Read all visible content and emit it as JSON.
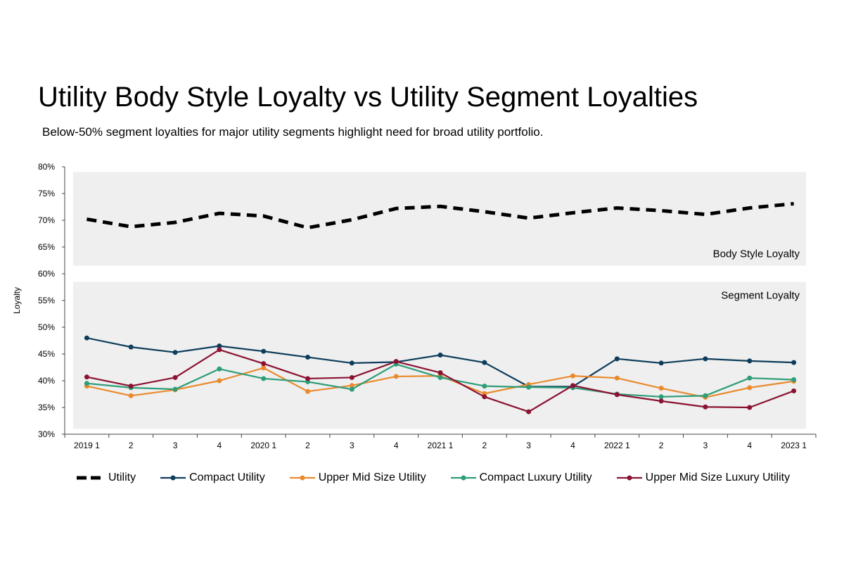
{
  "title": "Utility Body Style Loyalty vs Utility Segment Loyalties",
  "subtitle": "Below-50% segment loyalties for major utility segments highlight need for broad utility portfolio.",
  "chart_data": {
    "type": "line",
    "title": "Utility Body Style Loyalty vs Utility Segment Loyalties",
    "subtitle": "Below-50% segment loyalties for major utility segments highlight need for broad utility portfolio.",
    "ylabel": "Loyalty",
    "xlabel": "",
    "ylim": [
      30,
      80
    ],
    "yticks": [
      "30%",
      "35%",
      "40%",
      "45%",
      "50%",
      "55%",
      "60%",
      "65%",
      "70%",
      "75%",
      "80%"
    ],
    "categories": [
      "2019 1",
      "2",
      "3",
      "4",
      "2020 1",
      "2",
      "3",
      "4",
      "2021 1",
      "2",
      "3",
      "4",
      "2022 1",
      "2",
      "3",
      "4",
      "2023 1"
    ],
    "bands": [
      {
        "label": "Body Style Loyalty",
        "range": [
          61.5,
          79
        ],
        "label_position": "bottom-right"
      },
      {
        "label": "Segment Loyalty",
        "range": [
          31,
          58.5
        ],
        "label_position": "top-right"
      }
    ],
    "legend_position": "bottom",
    "grid": false,
    "series": [
      {
        "name": "Utility",
        "color": "#000000",
        "style": "dashed",
        "values": [
          70.2,
          68.8,
          69.6,
          71.3,
          70.8,
          68.6,
          70.1,
          72.2,
          72.6,
          71.6,
          70.4,
          71.4,
          72.3,
          71.8,
          71.1,
          72.3,
          73.1
        ]
      },
      {
        "name": "Compact Utility",
        "color": "#0e3d5c",
        "style": "solid",
        "values": [
          48.0,
          46.3,
          45.3,
          46.5,
          45.5,
          44.4,
          43.3,
          43.5,
          44.8,
          43.4,
          38.9,
          38.9,
          44.1,
          43.3,
          44.1,
          43.7,
          43.4
        ]
      },
      {
        "name": "Upper Mid Size Utility",
        "color": "#ea8a2e",
        "style": "solid",
        "values": [
          39.0,
          37.2,
          38.3,
          40.0,
          42.4,
          38.0,
          39.1,
          40.8,
          40.9,
          37.6,
          39.3,
          40.9,
          40.5,
          38.6,
          36.9,
          38.7,
          39.9
        ]
      },
      {
        "name": "Compact Luxury Utility",
        "color": "#2e9d7a",
        "style": "solid",
        "values": [
          39.5,
          38.7,
          38.4,
          42.2,
          40.4,
          39.8,
          38.4,
          43.1,
          40.6,
          39.0,
          38.8,
          38.7,
          37.5,
          37.0,
          37.2,
          40.5,
          40.2
        ]
      },
      {
        "name": "Upper Mid Size Luxury Utility",
        "color": "#8b1331",
        "style": "solid",
        "values": [
          40.7,
          39.0,
          40.6,
          45.8,
          43.2,
          40.4,
          40.6,
          43.6,
          41.5,
          37.0,
          34.2,
          39.1,
          37.4,
          36.2,
          35.1,
          35.0,
          38.1
        ]
      }
    ]
  }
}
